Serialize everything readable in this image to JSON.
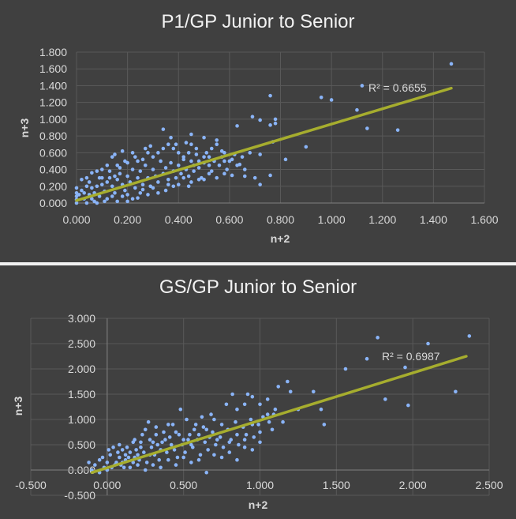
{
  "chart_data": [
    {
      "type": "scatter",
      "title": "P1/GP Junior to Senior",
      "xlabel": "n+2",
      "ylabel": "n+3",
      "xlim": [
        0,
        1.6
      ],
      "ylim": [
        0,
        1.8
      ],
      "x_ticks": [
        "0.000",
        "0.200",
        "0.400",
        "0.600",
        "0.800",
        "1.000",
        "1.200",
        "1.400",
        "1.600"
      ],
      "y_ticks": [
        "0.000",
        "0.200",
        "0.400",
        "0.600",
        "0.800",
        "1.000",
        "1.200",
        "1.400",
        "1.600",
        "1.800"
      ],
      "grid": true,
      "trendline": {
        "type": "linear",
        "x": [
          0.0,
          1.47
        ],
        "y": [
          0.03,
          1.37
        ],
        "r2_label": "R² = 0.6655"
      },
      "colors": {
        "points": "#8ab4f8",
        "trendline": "#a6ad2e"
      },
      "points": [
        [
          1.47,
          1.66
        ],
        [
          1.12,
          1.4
        ],
        [
          0.96,
          1.26
        ],
        [
          1.0,
          1.23
        ],
        [
          1.1,
          1.11
        ],
        [
          1.14,
          0.89
        ],
        [
          1.26,
          0.87
        ],
        [
          0.76,
          1.28
        ],
        [
          0.69,
          1.03
        ],
        [
          0.72,
          0.99
        ],
        [
          0.78,
          1.0
        ],
        [
          0.78,
          0.95
        ],
        [
          0.76,
          0.93
        ],
        [
          0.63,
          0.92
        ],
        [
          0.9,
          0.67
        ],
        [
          0.82,
          0.52
        ],
        [
          0.77,
          0.73
        ],
        [
          0.72,
          0.58
        ],
        [
          0.7,
          0.3
        ],
        [
          0.72,
          0.22
        ],
        [
          0.76,
          0.33
        ],
        [
          0.61,
          0.33
        ],
        [
          0.66,
          0.32
        ],
        [
          0.5,
          0.78
        ],
        [
          0.55,
          0.75
        ],
        [
          0.45,
          0.82
        ],
        [
          0.34,
          0.88
        ],
        [
          0.45,
          0.7
        ],
        [
          0.55,
          0.7
        ],
        [
          0.62,
          0.58
        ],
        [
          0.58,
          0.6
        ],
        [
          0.6,
          0.5
        ],
        [
          0.64,
          0.46
        ],
        [
          0.66,
          0.4
        ],
        [
          0.5,
          0.55
        ],
        [
          0.48,
          0.5
        ],
        [
          0.52,
          0.45
        ],
        [
          0.46,
          0.45
        ],
        [
          0.44,
          0.6
        ],
        [
          0.42,
          0.55
        ],
        [
          0.4,
          0.6
        ],
        [
          0.38,
          0.65
        ],
        [
          0.36,
          0.7
        ],
        [
          0.34,
          0.65
        ],
        [
          0.32,
          0.6
        ],
        [
          0.3,
          0.55
        ],
        [
          0.28,
          0.6
        ],
        [
          0.26,
          0.52
        ],
        [
          0.24,
          0.5
        ],
        [
          0.22,
          0.6
        ],
        [
          0.18,
          0.62
        ],
        [
          0.2,
          0.48
        ],
        [
          0.16,
          0.45
        ],
        [
          0.15,
          0.58
        ],
        [
          0.14,
          0.55
        ],
        [
          0.12,
          0.45
        ],
        [
          0.1,
          0.4
        ],
        [
          0.08,
          0.38
        ],
        [
          0.06,
          0.36
        ],
        [
          0.04,
          0.3
        ],
        [
          0.02,
          0.28
        ],
        [
          0.0,
          0.18
        ],
        [
          0.0,
          0.12
        ],
        [
          0.0,
          0.08
        ],
        [
          0.0,
          0.04
        ],
        [
          0.0,
          0.0
        ],
        [
          0.01,
          0.1
        ],
        [
          0.02,
          0.15
        ],
        [
          0.03,
          0.05
        ],
        [
          0.04,
          0.2
        ],
        [
          0.05,
          0.1
        ],
        [
          0.06,
          0.18
        ],
        [
          0.07,
          0.12
        ],
        [
          0.08,
          0.0
        ],
        [
          0.09,
          0.08
        ],
        [
          0.1,
          0.22
        ],
        [
          0.11,
          0.14
        ],
        [
          0.12,
          0.05
        ],
        [
          0.13,
          0.3
        ],
        [
          0.14,
          0.2
        ],
        [
          0.15,
          0.12
        ],
        [
          0.16,
          0.28
        ],
        [
          0.17,
          0.35
        ],
        [
          0.18,
          0.22
        ],
        [
          0.19,
          0.15
        ],
        [
          0.2,
          0.32
        ],
        [
          0.21,
          0.25
        ],
        [
          0.22,
          0.4
        ],
        [
          0.23,
          0.18
        ],
        [
          0.24,
          0.3
        ],
        [
          0.25,
          0.38
        ],
        [
          0.26,
          0.22
        ],
        [
          0.27,
          0.45
        ],
        [
          0.28,
          0.3
        ],
        [
          0.29,
          0.2
        ],
        [
          0.3,
          0.4
        ],
        [
          0.31,
          0.32
        ],
        [
          0.32,
          0.25
        ],
        [
          0.33,
          0.5
        ],
        [
          0.34,
          0.35
        ],
        [
          0.35,
          0.42
        ],
        [
          0.36,
          0.28
        ],
        [
          0.37,
          0.48
        ],
        [
          0.38,
          0.38
        ],
        [
          0.39,
          0.3
        ],
        [
          0.4,
          0.45
        ],
        [
          0.41,
          0.35
        ],
        [
          0.42,
          0.52
        ],
        [
          0.43,
          0.4
        ],
        [
          0.44,
          0.32
        ],
        [
          0.45,
          0.5
        ],
        [
          0.46,
          0.38
        ],
        [
          0.47,
          0.58
        ],
        [
          0.48,
          0.42
        ],
        [
          0.49,
          0.3
        ],
        [
          0.5,
          0.48
        ],
        [
          0.51,
          0.6
        ],
        [
          0.52,
          0.55
        ],
        [
          0.53,
          0.38
        ],
        [
          0.54,
          0.5
        ],
        [
          0.56,
          0.45
        ],
        [
          0.57,
          0.62
        ],
        [
          0.58,
          0.5
        ],
        [
          0.59,
          0.4
        ],
        [
          0.61,
          0.52
        ],
        [
          0.63,
          0.45
        ],
        [
          0.35,
          0.15
        ],
        [
          0.28,
          0.1
        ],
        [
          0.22,
          0.05
        ],
        [
          0.18,
          0.08
        ],
        [
          0.25,
          0.12
        ],
        [
          0.3,
          0.18
        ],
        [
          0.4,
          0.22
        ],
        [
          0.45,
          0.25
        ],
        [
          0.5,
          0.28
        ],
        [
          0.38,
          0.2
        ],
        [
          0.32,
          0.12
        ],
        [
          0.42,
          0.3
        ],
        [
          0.26,
          0.16
        ],
        [
          0.2,
          0.1
        ],
        [
          0.12,
          0.25
        ],
        [
          0.08,
          0.2
        ],
        [
          0.05,
          0.25
        ],
        [
          0.15,
          0.32
        ],
        [
          0.1,
          0.3
        ],
        [
          0.03,
          0.12
        ],
        [
          0.06,
          0.05
        ],
        [
          0.14,
          0.08
        ],
        [
          0.16,
          0.02
        ],
        [
          0.11,
          0.02
        ],
        [
          0.2,
          0.02
        ],
        [
          0.24,
          0.06
        ],
        [
          0.04,
          0.0
        ],
        [
          0.07,
          0.02
        ],
        [
          0.55,
          0.3
        ],
        [
          0.58,
          0.35
        ],
        [
          0.53,
          0.65
        ],
        [
          0.47,
          0.65
        ],
        [
          0.43,
          0.72
        ],
        [
          0.39,
          0.7
        ],
        [
          0.37,
          0.78
        ],
        [
          0.29,
          0.68
        ],
        [
          0.27,
          0.65
        ],
        [
          0.23,
          0.55
        ],
        [
          0.19,
          0.5
        ],
        [
          0.17,
          0.42
        ],
        [
          0.13,
          0.38
        ],
        [
          0.09,
          0.3
        ],
        [
          0.65,
          0.55
        ],
        [
          0.68,
          0.6
        ],
        [
          0.57,
          0.55
        ],
        [
          0.52,
          0.35
        ],
        [
          0.48,
          0.28
        ],
        [
          0.44,
          0.2
        ],
        [
          0.36,
          0.22
        ]
      ]
    },
    {
      "type": "scatter",
      "title": "GS/GP Junior to Senior",
      "xlabel": "n+2",
      "ylabel": "n+3",
      "xlim": [
        -0.5,
        2.5
      ],
      "ylim": [
        -0.5,
        3.0
      ],
      "x_ticks": [
        "-0.500",
        "0.000",
        "0.500",
        "1.000",
        "1.500",
        "2.000",
        "2.500"
      ],
      "y_ticks": [
        "-0.500",
        "0.000",
        "0.500",
        "1.000",
        "1.500",
        "2.000",
        "2.500",
        "3.000"
      ],
      "grid": true,
      "trendline": {
        "type": "linear",
        "x": [
          -0.1,
          2.35
        ],
        "y": [
          -0.05,
          2.25
        ],
        "r2_label": "R² = 0.6987"
      },
      "colors": {
        "points": "#8ab4f8",
        "trendline": "#a6ad2e"
      },
      "points": [
        [
          2.37,
          2.65
        ],
        [
          2.1,
          2.5
        ],
        [
          1.77,
          2.62
        ],
        [
          1.7,
          2.2
        ],
        [
          1.56,
          2.0
        ],
        [
          1.95,
          2.03
        ],
        [
          1.97,
          1.28
        ],
        [
          1.82,
          1.4
        ],
        [
          2.28,
          1.55
        ],
        [
          1.42,
          0.9
        ],
        [
          1.4,
          1.2
        ],
        [
          1.35,
          1.55
        ],
        [
          1.25,
          1.2
        ],
        [
          1.2,
          1.55
        ],
        [
          1.18,
          1.75
        ],
        [
          1.12,
          1.65
        ],
        [
          1.05,
          1.4
        ],
        [
          0.92,
          1.5
        ],
        [
          0.9,
          1.3
        ],
        [
          0.95,
          1.45
        ],
        [
          0.85,
          1.2
        ],
        [
          0.82,
          1.5
        ],
        [
          0.78,
          1.3
        ],
        [
          1.0,
          1.3
        ],
        [
          1.05,
          1.1
        ],
        [
          1.1,
          1.2
        ],
        [
          1.15,
          0.95
        ],
        [
          1.08,
          0.8
        ],
        [
          1.0,
          0.75
        ],
        [
          0.95,
          0.9
        ],
        [
          0.9,
          0.6
        ],
        [
          0.85,
          0.7
        ],
        [
          0.8,
          0.55
        ],
        [
          0.75,
          0.9
        ],
        [
          0.7,
          1.0
        ],
        [
          0.68,
          1.1
        ],
        [
          0.65,
          0.8
        ],
        [
          0.62,
          1.05
        ],
        [
          0.6,
          0.7
        ],
        [
          0.58,
          0.9
        ],
        [
          0.55,
          0.5
        ],
        [
          0.52,
          1.0
        ],
        [
          0.5,
          0.6
        ],
        [
          0.48,
          1.2
        ],
        [
          0.45,
          0.75
        ],
        [
          0.42,
          0.5
        ],
        [
          0.4,
          0.9
        ],
        [
          0.38,
          0.6
        ],
        [
          0.35,
          0.4
        ],
        [
          0.32,
          0.7
        ],
        [
          0.3,
          0.55
        ],
        [
          0.28,
          0.3
        ],
        [
          0.25,
          0.8
        ],
        [
          0.22,
          0.45
        ],
        [
          0.2,
          0.3
        ],
        [
          0.18,
          0.6
        ],
        [
          0.15,
          0.35
        ],
        [
          0.12,
          0.2
        ],
        [
          0.1,
          0.4
        ],
        [
          0.08,
          0.25
        ],
        [
          0.05,
          0.1
        ],
        [
          0.02,
          0.3
        ],
        [
          0.0,
          0.15
        ],
        [
          -0.02,
          0.05
        ],
        [
          -0.05,
          0.2
        ],
        [
          -0.08,
          0.1
        ],
        [
          -0.1,
          0.0
        ],
        [
          -0.12,
          0.15
        ],
        [
          -0.05,
          -0.05
        ],
        [
          0.0,
          0.0
        ],
        [
          0.03,
          0.05
        ],
        [
          0.06,
          0.15
        ],
        [
          0.09,
          0.1
        ],
        [
          0.11,
          0.05
        ],
        [
          0.14,
          0.25
        ],
        [
          0.17,
          0.15
        ],
        [
          0.19,
          0.4
        ],
        [
          0.21,
          0.2
        ],
        [
          0.24,
          0.35
        ],
        [
          0.26,
          0.15
        ],
        [
          0.29,
          0.45
        ],
        [
          0.31,
          0.3
        ],
        [
          0.34,
          0.2
        ],
        [
          0.36,
          0.55
        ],
        [
          0.39,
          0.35
        ],
        [
          0.41,
          0.65
        ],
        [
          0.44,
          0.4
        ],
        [
          0.46,
          0.25
        ],
        [
          0.49,
          0.5
        ],
        [
          0.51,
          0.35
        ],
        [
          0.54,
          0.7
        ],
        [
          0.56,
          0.45
        ],
        [
          0.59,
          0.6
        ],
        [
          0.61,
          0.3
        ],
        [
          0.64,
          0.55
        ],
        [
          0.66,
          0.4
        ],
        [
          0.69,
          0.75
        ],
        [
          0.71,
          0.5
        ],
        [
          0.74,
          0.65
        ],
        [
          0.76,
          0.45
        ],
        [
          0.79,
          0.8
        ],
        [
          0.81,
          0.6
        ],
        [
          0.84,
          0.95
        ],
        [
          0.86,
          0.5
        ],
        [
          0.89,
          0.85
        ],
        [
          0.91,
          0.7
        ],
        [
          0.94,
          1.0
        ],
        [
          0.96,
          0.65
        ],
        [
          0.99,
          0.9
        ],
        [
          1.02,
          1.05
        ],
        [
          1.06,
          0.95
        ],
        [
          1.09,
          1.1
        ],
        [
          0.32,
          0.85
        ],
        [
          0.27,
          0.95
        ],
        [
          0.23,
          0.7
        ],
        [
          0.17,
          0.55
        ],
        [
          0.13,
          0.45
        ],
        [
          0.07,
          0.35
        ],
        [
          0.04,
          0.45
        ],
        [
          0.6,
          0.2
        ],
        [
          0.55,
          0.15
        ],
        [
          0.5,
          0.25
        ],
        [
          0.45,
          0.1
        ],
        [
          0.4,
          0.2
        ],
        [
          0.35,
          0.05
        ],
        [
          0.3,
          0.1
        ],
        [
          0.25,
          0.0
        ],
        [
          0.2,
          0.1
        ],
        [
          0.15,
          0.05
        ],
        [
          0.1,
          0.15
        ],
        [
          0.65,
          -0.05
        ],
        [
          0.7,
          0.3
        ],
        [
          0.75,
          0.25
        ],
        [
          0.8,
          0.35
        ],
        [
          0.85,
          0.2
        ],
        [
          0.9,
          0.45
        ],
        [
          0.95,
          0.4
        ],
        [
          1.0,
          0.55
        ],
        [
          0.72,
          0.6
        ],
        [
          0.67,
          0.65
        ],
        [
          0.63,
          0.85
        ],
        [
          0.57,
          0.8
        ],
        [
          0.53,
          0.6
        ],
        [
          0.47,
          0.7
        ],
        [
          0.43,
          0.9
        ],
        [
          0.37,
          0.75
        ],
        [
          0.33,
          0.5
        ],
        [
          0.28,
          0.6
        ],
        [
          0.22,
          0.55
        ],
        [
          0.18,
          0.25
        ],
        [
          0.12,
          0.3
        ],
        [
          0.08,
          0.5
        ],
        [
          -0.03,
          0.25
        ],
        [
          0.01,
          0.4
        ]
      ]
    }
  ]
}
